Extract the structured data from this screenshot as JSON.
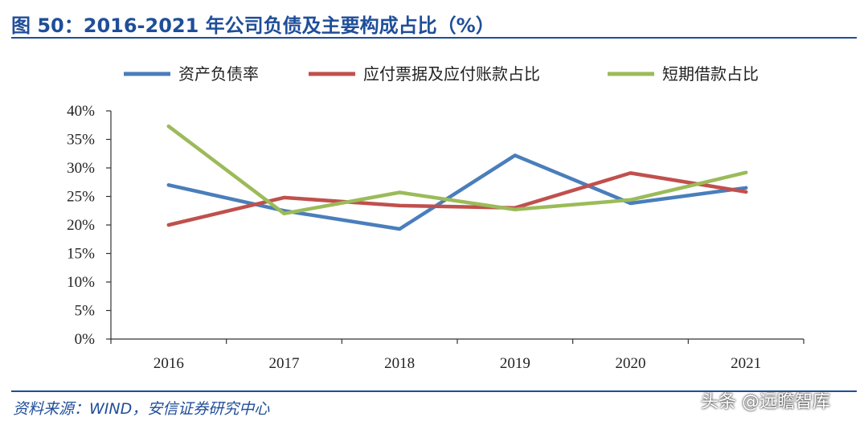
{
  "title": "图 50：2016-2021 年公司负债及主要构成占比（%）",
  "source": "资料来源：WIND，安信证券研究中心",
  "watermark": "头条 @远瞻智库",
  "chart_data": {
    "type": "line",
    "categories": [
      "2016",
      "2017",
      "2018",
      "2019",
      "2020",
      "2021"
    ],
    "series": [
      {
        "name": "资产负债率",
        "color": "#4a7ebb",
        "values": [
          27.0,
          22.5,
          19.3,
          32.2,
          23.8,
          26.5
        ]
      },
      {
        "name": "应付票据及应付账款占比",
        "color": "#c0504d",
        "values": [
          20.0,
          24.8,
          23.4,
          23.0,
          29.1,
          25.8
        ]
      },
      {
        "name": "短期借款占比",
        "color": "#9bbb59",
        "values": [
          37.3,
          22.0,
          25.7,
          22.7,
          24.4,
          29.2
        ]
      }
    ],
    "ylim": [
      0,
      40
    ],
    "yticks": [
      "0%",
      "5%",
      "10%",
      "15%",
      "20%",
      "25%",
      "30%",
      "35%",
      "40%"
    ],
    "ytick_values": [
      0,
      5,
      10,
      15,
      20,
      25,
      30,
      35,
      40
    ],
    "legend_position": "top",
    "grid": false,
    "xlabel": "",
    "ylabel": ""
  }
}
